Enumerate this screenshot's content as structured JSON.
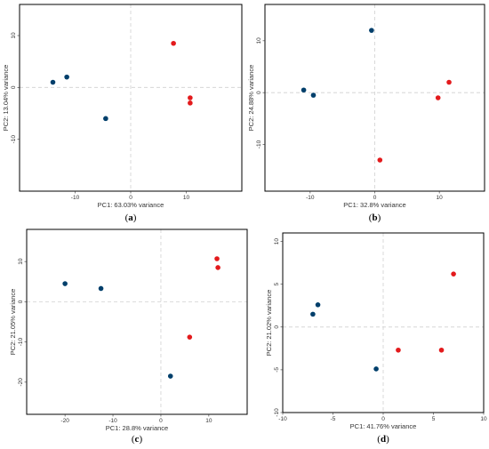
{
  "colors": {
    "group_a": "#003f6b",
    "group_b": "#e31a1c",
    "grid": "#d0d0d0",
    "frame": "#000000"
  },
  "chart_data": [
    {
      "type": "scatter",
      "panel_label": "a",
      "xlabel": "PC1: 63.03% variance",
      "ylabel": "PC2: 13.04% variance",
      "xlim": [
        -20,
        20
      ],
      "ylim": [
        -20,
        16
      ],
      "xticks": [
        -10,
        0,
        10
      ],
      "yticks": [
        -10,
        0,
        10
      ],
      "grid": "dashed zero lines",
      "series": [
        {
          "color": "#003f6b",
          "points": [
            [
              -14,
              1
            ],
            [
              -11.5,
              2
            ],
            [
              -4.5,
              -6
            ]
          ]
        },
        {
          "color": "#e31a1c",
          "points": [
            [
              7.7,
              8.5
            ],
            [
              10.7,
              -2
            ],
            [
              10.7,
              -3
            ]
          ]
        }
      ]
    },
    {
      "type": "scatter",
      "panel_label": "b",
      "xlabel": "PC1: 32.8% variance",
      "ylabel": "PC2: 24.88% variance",
      "xlim": [
        -17,
        17
      ],
      "ylim": [
        -19,
        17
      ],
      "xticks": [
        -10,
        0,
        10
      ],
      "yticks": [
        -10,
        0,
        10
      ],
      "grid": "dashed zero lines",
      "series": [
        {
          "color": "#003f6b",
          "points": [
            [
              -0.5,
              12
            ],
            [
              -11,
              0.5
            ],
            [
              -9.5,
              -0.5
            ]
          ]
        },
        {
          "color": "#e31a1c",
          "points": [
            [
              11.5,
              2
            ],
            [
              9.8,
              -1
            ],
            [
              0.8,
              -13
            ]
          ]
        }
      ]
    },
    {
      "type": "scatter",
      "panel_label": "c",
      "xlabel": "PC1: 28.8% variance",
      "ylabel": "PC2: 21.05% variance",
      "xlim": [
        -28,
        18
      ],
      "ylim": [
        -28,
        18
      ],
      "xticks": [
        -20,
        -10,
        0,
        10
      ],
      "yticks": [
        -20,
        -10,
        0,
        10
      ],
      "grid": "dashed zero lines",
      "series": [
        {
          "color": "#003f6b",
          "points": [
            [
              -20,
              4.5
            ],
            [
              -12.5,
              3.3
            ],
            [
              2,
              -18.5
            ]
          ]
        },
        {
          "color": "#e31a1c",
          "points": [
            [
              11.7,
              10.7
            ],
            [
              11.9,
              8.5
            ],
            [
              6,
              -8.8
            ]
          ]
        }
      ]
    },
    {
      "type": "scatter",
      "panel_label": "d",
      "xlabel": "PC1: 41.76% variance",
      "ylabel": "PC2: 21.02% variance",
      "xlim": [
        -10,
        10
      ],
      "ylim": [
        -10,
        11
      ],
      "xticks": [
        -10,
        -5,
        0,
        5,
        10
      ],
      "yticks": [
        -10,
        -5,
        0,
        5,
        10
      ],
      "grid": "dashed zero lines",
      "series": [
        {
          "color": "#003f6b",
          "points": [
            [
              -7,
              1.5
            ],
            [
              -6.5,
              2.6
            ],
            [
              -0.7,
              -4.9
            ]
          ]
        },
        {
          "color": "#e31a1c",
          "points": [
            [
              7,
              6.2
            ],
            [
              1.5,
              -2.7
            ],
            [
              5.8,
              -2.7
            ]
          ]
        }
      ]
    }
  ]
}
